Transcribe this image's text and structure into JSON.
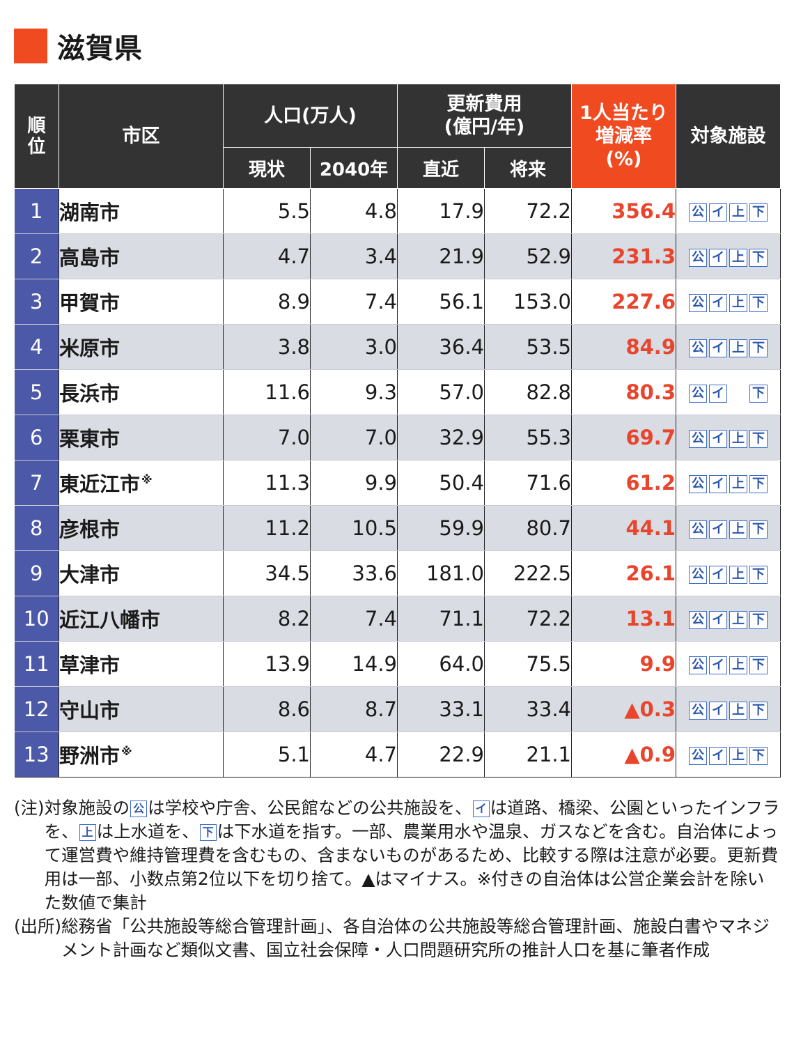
{
  "title": "滋賀県",
  "header": {
    "rank": "順位",
    "city": "市区",
    "population": "人口(万人)",
    "pop_now": "現状",
    "pop_2040": "2040年",
    "cost": "更新費用",
    "cost_unit": "(億円/年)",
    "cost_recent": "直近",
    "cost_future": "将来",
    "rate_line1": "1人当たり",
    "rate_line2": "増減率",
    "rate_line3": "(%)",
    "facilities": "対象施設"
  },
  "facility_icons": {
    "public": "公",
    "infra": "イ",
    "water": "上",
    "sewer": "下"
  },
  "rows": [
    {
      "rank": "1",
      "city": "湖南市",
      "mark": "",
      "pop_now": "5.5",
      "pop_2040": "4.8",
      "cost_recent": "17.9",
      "cost_future": "72.2",
      "rate": "356.4",
      "fac": [
        "公",
        "イ",
        "上",
        "下"
      ]
    },
    {
      "rank": "2",
      "city": "高島市",
      "mark": "",
      "pop_now": "4.7",
      "pop_2040": "3.4",
      "cost_recent": "21.9",
      "cost_future": "52.9",
      "rate": "231.3",
      "fac": [
        "公",
        "イ",
        "上",
        "下"
      ]
    },
    {
      "rank": "3",
      "city": "甲賀市",
      "mark": "",
      "pop_now": "8.9",
      "pop_2040": "7.4",
      "cost_recent": "56.1",
      "cost_future": "153.0",
      "rate": "227.6",
      "fac": [
        "公",
        "イ",
        "上",
        "下"
      ]
    },
    {
      "rank": "4",
      "city": "米原市",
      "mark": "",
      "pop_now": "3.8",
      "pop_2040": "3.0",
      "cost_recent": "36.4",
      "cost_future": "53.5",
      "rate": "84.9",
      "fac": [
        "公",
        "イ",
        "上",
        "下"
      ]
    },
    {
      "rank": "5",
      "city": "長浜市",
      "mark": "",
      "pop_now": "11.6",
      "pop_2040": "9.3",
      "cost_recent": "57.0",
      "cost_future": "82.8",
      "rate": "80.3",
      "fac": [
        "公",
        "イ",
        "",
        "下"
      ]
    },
    {
      "rank": "6",
      "city": "栗東市",
      "mark": "",
      "pop_now": "7.0",
      "pop_2040": "7.0",
      "cost_recent": "32.9",
      "cost_future": "55.3",
      "rate": "69.7",
      "fac": [
        "公",
        "イ",
        "上",
        "下"
      ]
    },
    {
      "rank": "7",
      "city": "東近江市",
      "mark": "※",
      "pop_now": "11.3",
      "pop_2040": "9.9",
      "cost_recent": "50.4",
      "cost_future": "71.6",
      "rate": "61.2",
      "fac": [
        "公",
        "イ",
        "上",
        "下"
      ]
    },
    {
      "rank": "8",
      "city": "彦根市",
      "mark": "",
      "pop_now": "11.2",
      "pop_2040": "10.5",
      "cost_recent": "59.9",
      "cost_future": "80.7",
      "rate": "44.1",
      "fac": [
        "公",
        "イ",
        "上",
        "下"
      ]
    },
    {
      "rank": "9",
      "city": "大津市",
      "mark": "",
      "pop_now": "34.5",
      "pop_2040": "33.6",
      "cost_recent": "181.0",
      "cost_future": "222.5",
      "rate": "26.1",
      "fac": [
        "公",
        "イ",
        "上",
        "下"
      ]
    },
    {
      "rank": "10",
      "city": "近江八幡市",
      "mark": "",
      "pop_now": "8.2",
      "pop_2040": "7.4",
      "cost_recent": "71.1",
      "cost_future": "72.2",
      "rate": "13.1",
      "fac": [
        "公",
        "イ",
        "上",
        "下"
      ]
    },
    {
      "rank": "11",
      "city": "草津市",
      "mark": "",
      "pop_now": "13.9",
      "pop_2040": "14.9",
      "cost_recent": "64.0",
      "cost_future": "75.5",
      "rate": "9.9",
      "fac": [
        "公",
        "イ",
        "上",
        "下"
      ]
    },
    {
      "rank": "12",
      "city": "守山市",
      "mark": "",
      "pop_now": "8.6",
      "pop_2040": "8.7",
      "cost_recent": "33.1",
      "cost_future": "33.4",
      "rate": "▲0.3",
      "fac": [
        "公",
        "イ",
        "上",
        "下"
      ]
    },
    {
      "rank": "13",
      "city": "野洲市",
      "mark": "※",
      "pop_now": "5.1",
      "pop_2040": "4.7",
      "cost_recent": "22.9",
      "cost_future": "21.1",
      "rate": "▲0.9",
      "fac": [
        "公",
        "イ",
        "上",
        "下"
      ]
    }
  ],
  "notes": {
    "note_label": "(注)",
    "note_t1": "対象施設の",
    "note_t2": "は学校や庁舎、公民館などの公共施設を、",
    "note_t3": "は道路、橋梁、公園といったインフラを、",
    "note_t4": "は上水道を、",
    "note_t5": "は下水道を指す。一部、農業用水や温泉、ガスなどを含む。自治体によって運営費や維持管理費を含むもの、含まないものがあるため、比較する際は注意が必要。更新費用は一部、小数点第2位以下を切り捨て。▲はマイナス。※付きの自治体は公営企業会計を除いた数値で集計",
    "source_label": "(出所)",
    "source_text": "総務省「公共施設等総合管理計画」、各自治体の公共施設等総合管理計画、施設白書やマネジメント計画など類似文書、国立社会保障・人口問題研究所の推計人口を基に筆者作成"
  }
}
